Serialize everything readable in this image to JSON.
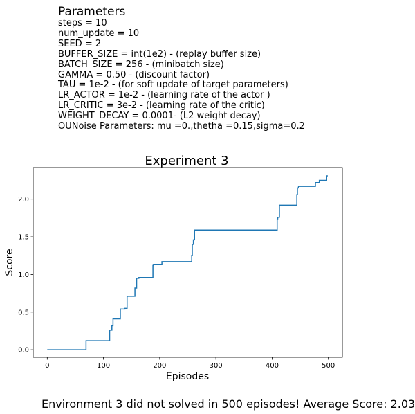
{
  "parameters": {
    "title": "Parameters",
    "lines": [
      "steps = 10",
      "num_update = 10",
      "SEED = 2",
      "BUFFER_SIZE = int(1e2) - (replay buffer size)",
      "BATCH_SIZE = 256 - (minibatch size)",
      "GAMMA = 0.50 - (discount factor)",
      "TAU = 1e-2 - (for soft update of target parameters)",
      "LR_ACTOR = 1e-2 - (learning rate of the actor )",
      "LR_CRITIC = 3e-2 - (learning rate of the critic)",
      "WEIGHT_DECAY = 0.0001- (L2 weight decay)",
      "OUNoise Parameters: mu =0.,thetha =0.15,sigma=0.2"
    ]
  },
  "chart_data": {
    "type": "line",
    "title": "Experiment 3",
    "xlabel": "Episodes",
    "ylabel": "Score",
    "xlim": [
      -25,
      525
    ],
    "ylim": [
      -0.1,
      2.42
    ],
    "xticks": [
      "0",
      "100",
      "200",
      "300",
      "400",
      "500"
    ],
    "yticks": [
      "0.0",
      "0.5",
      "1.0",
      "1.5",
      "2.0"
    ],
    "grid": false,
    "line_color": "#1f77b4",
    "series": [
      {
        "x": [
          0,
          69,
          69,
          111,
          111,
          115,
          115,
          117,
          117,
          130,
          130,
          138,
          138,
          142,
          142,
          156,
          156,
          159,
          159,
          163,
          163,
          188,
          188,
          189,
          189,
          204,
          204,
          257,
          257,
          258,
          258,
          260,
          260,
          262,
          262,
          409,
          409,
          410,
          410,
          413,
          413,
          444,
          444,
          445,
          445,
          447,
          447,
          477,
          477,
          484,
          484,
          497,
          497,
          499
        ],
        "y": [
          0.0,
          0.0,
          0.12,
          0.12,
          0.26,
          0.26,
          0.32,
          0.32,
          0.41,
          0.41,
          0.54,
          0.54,
          0.55,
          0.55,
          0.71,
          0.71,
          0.82,
          0.82,
          0.95,
          0.95,
          0.96,
          0.96,
          1.12,
          1.12,
          1.13,
          1.13,
          1.17,
          1.17,
          1.25,
          1.25,
          1.4,
          1.4,
          1.46,
          1.46,
          1.59,
          1.59,
          1.73,
          1.73,
          1.76,
          1.76,
          1.92,
          1.92,
          2.06,
          2.06,
          2.15,
          2.15,
          2.17,
          2.17,
          2.22,
          2.22,
          2.25,
          2.25,
          2.31,
          2.31
        ]
      }
    ]
  },
  "footer": "Environment 3 did not solved in 500 episodes! Average Score: 2.03"
}
